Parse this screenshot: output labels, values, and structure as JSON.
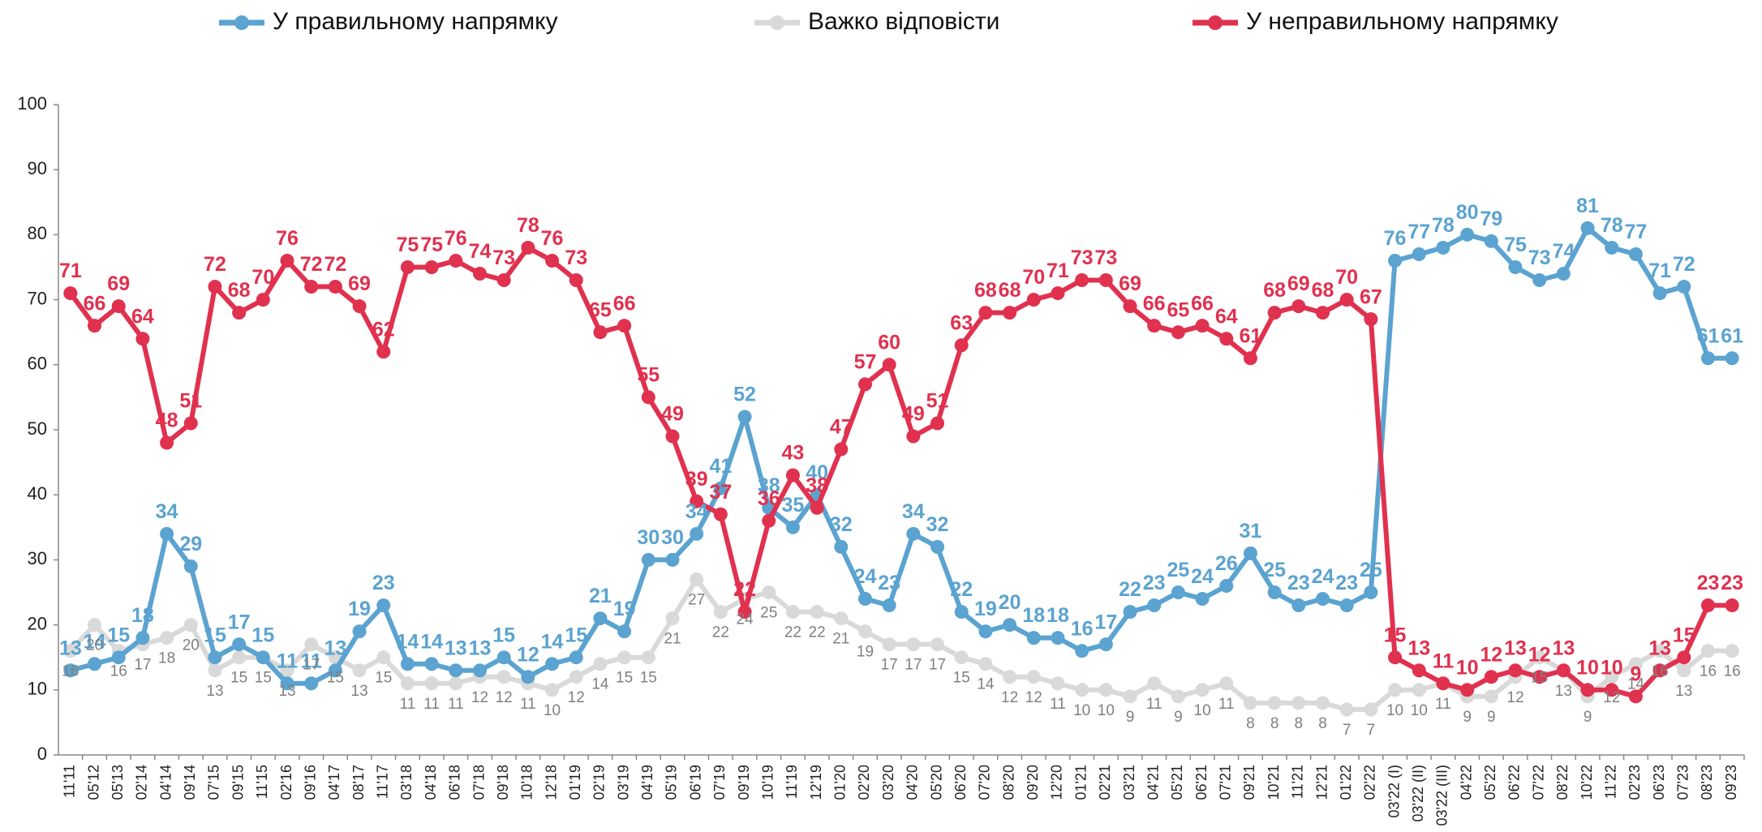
{
  "chart_data": {
    "type": "line",
    "categories": [
      "11'11",
      "05'12",
      "05'13",
      "02'14",
      "04'14",
      "09'14",
      "07'15",
      "09'15",
      "11'15",
      "02'16",
      "09'16",
      "04'17",
      "08'17",
      "11'17",
      "03'18",
      "04'18",
      "06'18",
      "07'18",
      "09'18",
      "10'18",
      "12'18",
      "01'19",
      "02'19",
      "03'19",
      "04'19",
      "05'19",
      "06'19",
      "07'19",
      "09'19",
      "10'19",
      "11'19",
      "12'19",
      "01'20",
      "02'20",
      "03'20",
      "04'20",
      "05'20",
      "06'20",
      "07'20",
      "08'20",
      "09'20",
      "12'20",
      "01'21",
      "02'21",
      "03'21",
      "04'21",
      "05'21",
      "06'21",
      "07'21",
      "09'21",
      "10'21",
      "11'21",
      "12'21",
      "01'22",
      "02'22",
      "03'22 (I)",
      "03'22 (II)",
      "03'22 (III)",
      "04'22",
      "05'22",
      "06'22",
      "07'22",
      "08'22",
      "10'22",
      "11'22",
      "02'23",
      "06'23",
      "07'23",
      "08'23",
      "09'23"
    ],
    "series": [
      {
        "name": "У правильному напрямку",
        "color": "#5ba3d0",
        "label_color": "#5ba3d0",
        "label_pos": "above",
        "values": [
          13,
          14,
          15,
          18,
          34,
          29,
          15,
          17,
          15,
          11,
          11,
          13,
          19,
          23,
          14,
          14,
          13,
          13,
          15,
          12,
          14,
          15,
          21,
          19,
          30,
          30,
          34,
          41,
          52,
          38,
          35,
          40,
          32,
          24,
          23,
          34,
          32,
          22,
          19,
          20,
          18,
          18,
          16,
          17,
          22,
          23,
          25,
          24,
          26,
          31,
          25,
          23,
          24,
          23,
          25,
          76,
          77,
          78,
          80,
          79,
          75,
          73,
          74,
          81,
          78,
          77,
          71,
          72,
          61,
          61
        ]
      },
      {
        "name": "Важко відповісти",
        "color": "#d9d9d9",
        "label_color": "#808080",
        "label_pos": "below",
        "values": [
          16,
          20,
          16,
          17,
          18,
          20,
          13,
          15,
          15,
          13,
          17,
          15,
          13,
          15,
          11,
          11,
          11,
          12,
          12,
          11,
          10,
          12,
          14,
          15,
          15,
          21,
          27,
          22,
          24,
          25,
          22,
          22,
          21,
          19,
          17,
          17,
          17,
          15,
          14,
          12,
          12,
          11,
          10,
          10,
          9,
          11,
          9,
          10,
          11,
          8,
          8,
          8,
          8,
          7,
          7,
          10,
          10,
          11,
          9,
          9,
          12,
          15,
          13,
          9,
          12,
          14,
          16,
          13,
          16,
          16
        ]
      },
      {
        "name": "У неправильному напрямку",
        "color": "#e0314f",
        "label_color": "#e0314f",
        "label_pos": "above",
        "values": [
          71,
          66,
          69,
          64,
          48,
          51,
          72,
          68,
          70,
          76,
          72,
          72,
          69,
          62,
          75,
          75,
          76,
          74,
          73,
          78,
          76,
          73,
          65,
          66,
          55,
          49,
          39,
          37,
          22,
          36,
          43,
          38,
          47,
          57,
          60,
          49,
          51,
          63,
          68,
          68,
          70,
          71,
          73,
          73,
          69,
          66,
          65,
          66,
          64,
          61,
          68,
          69,
          68,
          70,
          67,
          15,
          13,
          11,
          10,
          12,
          13,
          12,
          13,
          10,
          10,
          9,
          13,
          15,
          23,
          23
        ]
      }
    ],
    "ylim": [
      0,
      100
    ],
    "yticks": [
      0,
      10,
      20,
      30,
      40,
      50,
      60,
      70,
      80,
      90,
      100
    ],
    "grid": false,
    "legend": "top"
  }
}
